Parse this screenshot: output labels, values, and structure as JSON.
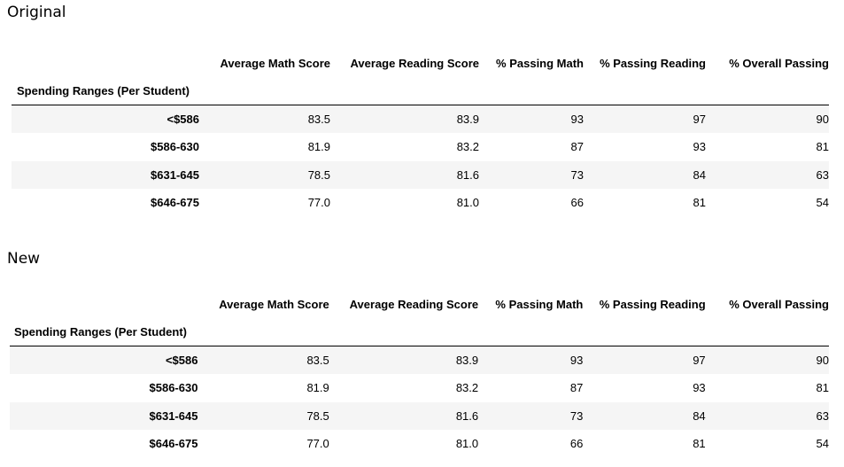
{
  "tables": [
    {
      "label": "Original",
      "index_name": "Spending Ranges (Per Student)",
      "columns": [
        "Average Math Score",
        "Average Reading Score",
        "% Passing Math",
        "% Passing Reading",
        "% Overall Passing"
      ],
      "rows": [
        {
          "index": "<$586",
          "values": [
            "83.5",
            "83.9",
            "93",
            "97",
            "90"
          ]
        },
        {
          "index": "$586-630",
          "values": [
            "81.9",
            "83.2",
            "87",
            "93",
            "81"
          ]
        },
        {
          "index": "$631-645",
          "values": [
            "78.5",
            "81.6",
            "73",
            "84",
            "63"
          ]
        },
        {
          "index": "$646-675",
          "values": [
            "77.0",
            "81.0",
            "66",
            "81",
            "54"
          ]
        }
      ]
    },
    {
      "label": "New",
      "index_name": "Spending Ranges (Per Student)",
      "columns": [
        "Average Math Score",
        "Average Reading Score",
        "% Passing Math",
        "% Passing Reading",
        "% Overall Passing"
      ],
      "rows": [
        {
          "index": "<$586",
          "values": [
            "83.5",
            "83.9",
            "93",
            "97",
            "90"
          ]
        },
        {
          "index": "$586-630",
          "values": [
            "81.9",
            "83.2",
            "87",
            "93",
            "81"
          ]
        },
        {
          "index": "$631-645",
          "values": [
            "78.5",
            "81.6",
            "73",
            "84",
            "63"
          ]
        },
        {
          "index": "$646-675",
          "values": [
            "77.0",
            "81.0",
            "66",
            "81",
            "54"
          ]
        }
      ]
    }
  ]
}
